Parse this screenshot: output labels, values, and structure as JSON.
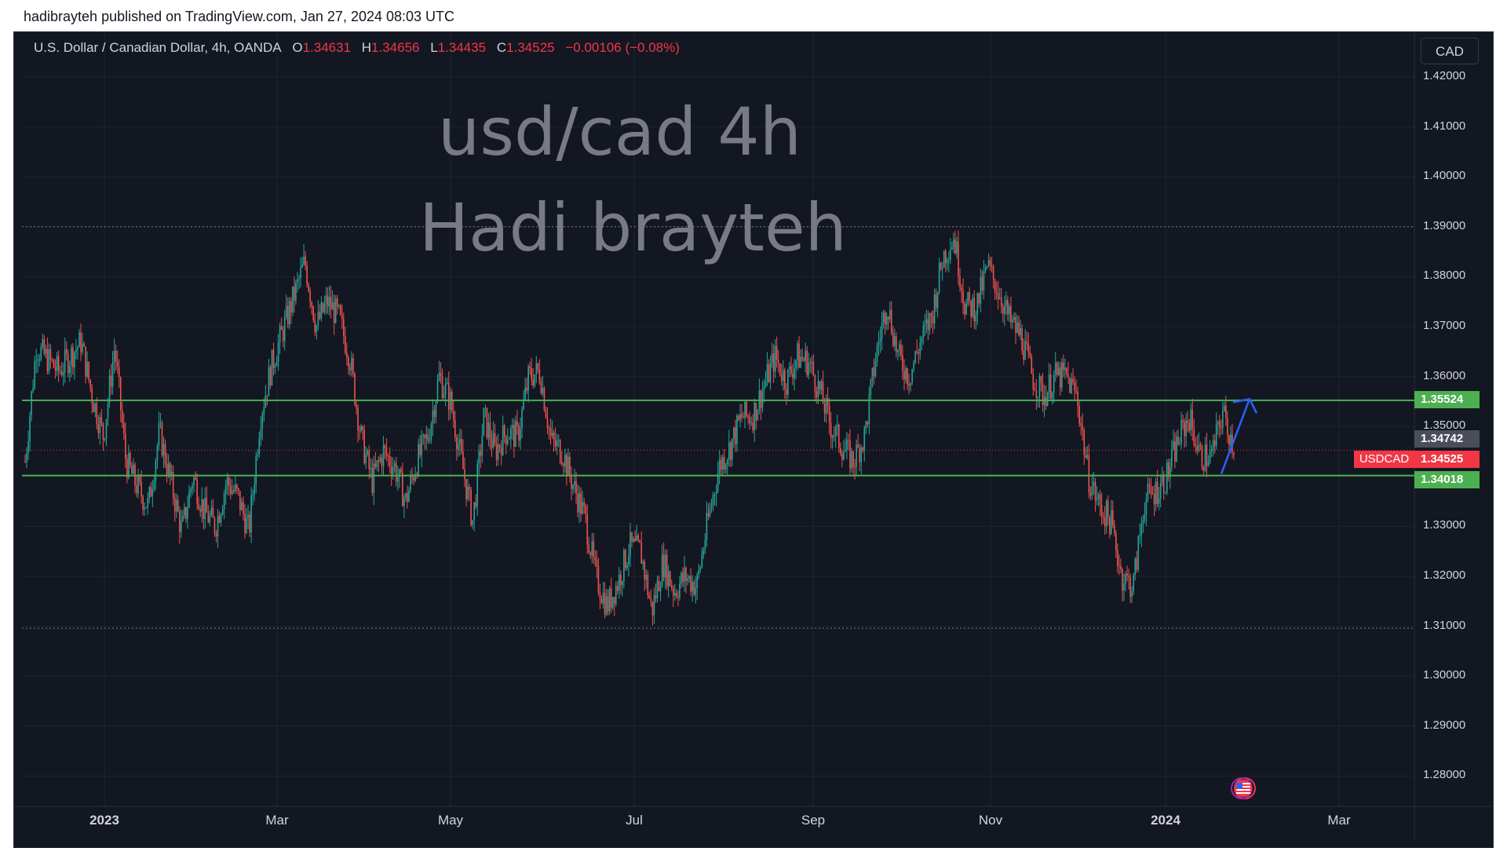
{
  "publisher": {
    "text": "hadibrayteh published on TradingView.com, Jan 27, 2024 08:03 UTC"
  },
  "legend": {
    "symbol_desc": "U.S. Dollar / Canadian Dollar, 4h, OANDA",
    "o_key": "O",
    "o_val": "1.34631",
    "h_key": "H",
    "h_val": "1.34656",
    "l_key": "L",
    "l_val": "1.34435",
    "c_key": "C",
    "c_val": "1.34525",
    "change": "−0.00106 (−0.08%)"
  },
  "currency_button": "CAD",
  "watermark": {
    "line1": "usd/cad 4h",
    "line2": "Hadi brayteh"
  },
  "price_axis": {
    "labels": [
      "1.42000",
      "1.41000",
      "1.40000",
      "1.39000",
      "1.38000",
      "1.37000",
      "1.36000",
      "1.35000",
      "1.34000",
      "1.33000",
      "1.32000",
      "1.31000",
      "1.30000",
      "1.29000",
      "1.28000"
    ],
    "values": [
      1.42,
      1.41,
      1.4,
      1.39,
      1.38,
      1.37,
      1.36,
      1.35,
      1.34,
      1.33,
      1.32,
      1.31,
      1.3,
      1.29,
      1.28
    ]
  },
  "price_tags": {
    "resistance": "1.35524",
    "mid": "1.34742",
    "current_symbol": "USDCAD",
    "current": "1.34525",
    "support": "1.34018"
  },
  "time_axis": {
    "labels": [
      "2023",
      "Mar",
      "May",
      "Jul",
      "Sep",
      "Nov",
      "2024",
      "Mar"
    ],
    "bold": [
      true,
      false,
      false,
      false,
      false,
      false,
      true,
      false
    ]
  },
  "colors": {
    "background": "#131722",
    "up": "#26a69a",
    "down": "#ef5350",
    "level_line": "#4caf50",
    "arrow": "#2962ff",
    "grid": "#1f2330"
  },
  "icons": {
    "flag": "us-flag-event-icon",
    "arrow": "up-arrow-drawing-icon"
  },
  "chart_data": {
    "type": "candlestick",
    "symbol": "USDCAD",
    "timeframe": "4h",
    "ylim": [
      1.275,
      1.425
    ],
    "horizontal_levels": [
      1.35524,
      1.34018
    ],
    "dotted_levels": [
      1.39,
      1.3096
    ],
    "current_price": 1.34525,
    "path": [
      [
        0,
        1.343
      ],
      [
        1,
        1.366
      ],
      [
        3,
        1.361
      ],
      [
        5,
        1.367
      ],
      [
        6,
        1.356
      ],
      [
        7,
        1.348
      ],
      [
        8,
        1.366
      ],
      [
        9,
        1.343
      ],
      [
        10,
        1.338
      ],
      [
        11,
        1.334
      ],
      [
        12,
        1.349
      ],
      [
        14,
        1.329
      ],
      [
        15,
        1.34
      ],
      [
        16,
        1.333
      ],
      [
        17,
        1.33
      ],
      [
        18,
        1.339
      ],
      [
        19,
        1.336
      ],
      [
        20,
        1.329
      ],
      [
        21,
        1.352
      ],
      [
        22,
        1.362
      ],
      [
        24,
        1.376
      ],
      [
        25,
        1.383
      ],
      [
        26,
        1.37
      ],
      [
        27,
        1.375
      ],
      [
        28,
        1.372
      ],
      [
        29,
        1.364
      ],
      [
        30,
        1.348
      ],
      [
        31,
        1.339
      ],
      [
        32,
        1.345
      ],
      [
        33,
        1.342
      ],
      [
        34,
        1.335
      ],
      [
        35,
        1.343
      ],
      [
        36,
        1.348
      ],
      [
        37,
        1.36
      ],
      [
        38,
        1.355
      ],
      [
        39,
        1.343
      ],
      [
        40,
        1.331
      ],
      [
        41,
        1.352
      ],
      [
        42,
        1.345
      ],
      [
        43,
        1.349
      ],
      [
        44,
        1.348
      ],
      [
        45,
        1.36
      ],
      [
        46,
        1.361
      ],
      [
        47,
        1.347
      ],
      [
        48,
        1.345
      ],
      [
        49,
        1.338
      ],
      [
        50,
        1.332
      ],
      [
        51,
        1.32
      ],
      [
        52,
        1.314
      ],
      [
        53,
        1.319
      ],
      [
        54,
        1.326
      ],
      [
        55,
        1.325
      ],
      [
        56,
        1.313
      ],
      [
        57,
        1.323
      ],
      [
        58,
        1.317
      ],
      [
        59,
        1.32
      ],
      [
        60,
        1.318
      ],
      [
        61,
        1.331
      ],
      [
        62,
        1.342
      ],
      [
        63,
        1.346
      ],
      [
        64,
        1.352
      ],
      [
        65,
        1.352
      ],
      [
        66,
        1.358
      ],
      [
        67,
        1.364
      ],
      [
        68,
        1.359
      ],
      [
        69,
        1.364
      ],
      [
        70,
        1.363
      ],
      [
        71,
        1.357
      ],
      [
        72,
        1.35
      ],
      [
        73,
        1.346
      ],
      [
        74,
        1.343
      ],
      [
        75,
        1.348
      ],
      [
        76,
        1.364
      ],
      [
        77,
        1.375
      ],
      [
        78,
        1.364
      ],
      [
        79,
        1.36
      ],
      [
        80,
        1.367
      ],
      [
        81,
        1.372
      ],
      [
        82,
        1.384
      ],
      [
        83,
        1.388
      ],
      [
        84,
        1.374
      ],
      [
        85,
        1.374
      ],
      [
        86,
        1.382
      ],
      [
        87,
        1.377
      ],
      [
        88,
        1.371
      ],
      [
        89,
        1.368
      ],
      [
        90,
        1.36
      ],
      [
        91,
        1.356
      ],
      [
        92,
        1.36
      ],
      [
        93,
        1.36
      ],
      [
        94,
        1.356
      ],
      [
        95,
        1.34
      ],
      [
        96,
        1.334
      ],
      [
        97,
        1.331
      ],
      [
        98,
        1.32
      ],
      [
        99,
        1.318
      ],
      [
        100,
        1.335
      ],
      [
        101,
        1.337
      ],
      [
        102,
        1.34
      ],
      [
        103,
        1.347
      ],
      [
        104,
        1.352
      ],
      [
        105,
        1.344
      ],
      [
        106,
        1.344
      ],
      [
        107,
        1.353
      ],
      [
        108,
        1.346
      ]
    ],
    "time_ticks": [
      "2023",
      "Mar",
      "May",
      "Jul",
      "Sep",
      "Nov",
      "2024",
      "Mar"
    ]
  }
}
